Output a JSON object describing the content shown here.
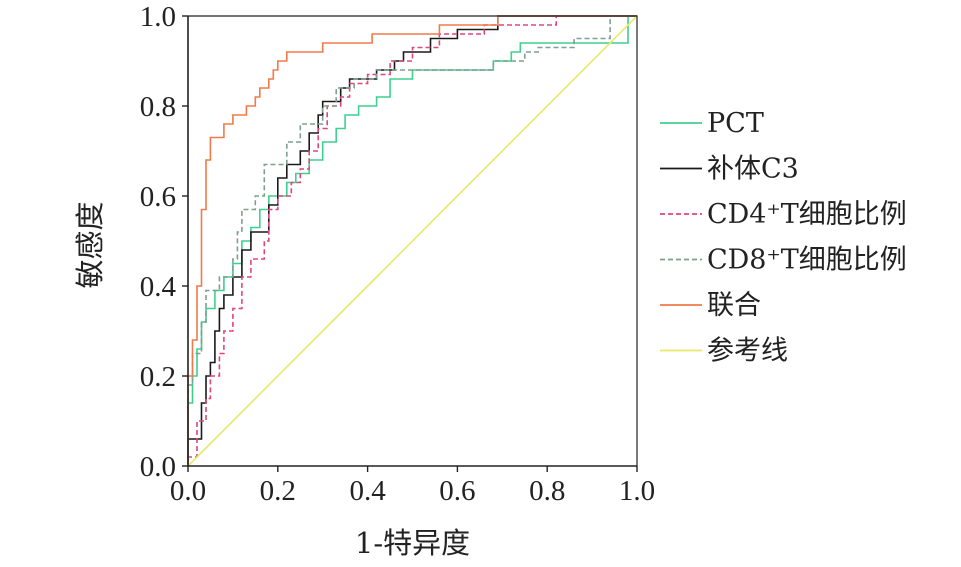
{
  "chart_data": {
    "type": "line",
    "xlabel": "1-特异度",
    "ylabel": "敏感度",
    "xlim": [
      0,
      1
    ],
    "ylim": [
      0,
      1
    ],
    "x_ticks": [
      "0.0",
      "0.2",
      "0.4",
      "0.6",
      "0.8",
      "1.0"
    ],
    "y_ticks": [
      "0.0",
      "0.2",
      "0.4",
      "0.6",
      "0.8",
      "1.0"
    ],
    "grid": false,
    "legend_position": "right",
    "series": [
      {
        "name": "PCT",
        "color": "#3fcf8f",
        "dash": "solid",
        "points": [
          [
            0,
            0
          ],
          [
            0,
            0.14
          ],
          [
            0.01,
            0.14
          ],
          [
            0.01,
            0.2
          ],
          [
            0.02,
            0.2
          ],
          [
            0.02,
            0.26
          ],
          [
            0.03,
            0.26
          ],
          [
            0.03,
            0.32
          ],
          [
            0.04,
            0.32
          ],
          [
            0.04,
            0.35
          ],
          [
            0.06,
            0.35
          ],
          [
            0.06,
            0.39
          ],
          [
            0.08,
            0.39
          ],
          [
            0.08,
            0.42
          ],
          [
            0.1,
            0.42
          ],
          [
            0.1,
            0.45
          ],
          [
            0.12,
            0.45
          ],
          [
            0.12,
            0.5
          ],
          [
            0.14,
            0.5
          ],
          [
            0.14,
            0.53
          ],
          [
            0.16,
            0.53
          ],
          [
            0.16,
            0.57
          ],
          [
            0.18,
            0.57
          ],
          [
            0.18,
            0.6
          ],
          [
            0.22,
            0.6
          ],
          [
            0.22,
            0.63
          ],
          [
            0.24,
            0.63
          ],
          [
            0.24,
            0.65
          ],
          [
            0.27,
            0.65
          ],
          [
            0.27,
            0.68
          ],
          [
            0.3,
            0.68
          ],
          [
            0.3,
            0.72
          ],
          [
            0.33,
            0.72
          ],
          [
            0.33,
            0.75
          ],
          [
            0.35,
            0.75
          ],
          [
            0.35,
            0.78
          ],
          [
            0.38,
            0.78
          ],
          [
            0.38,
            0.8
          ],
          [
            0.42,
            0.8
          ],
          [
            0.42,
            0.82
          ],
          [
            0.45,
            0.82
          ],
          [
            0.45,
            0.86
          ],
          [
            0.5,
            0.86
          ],
          [
            0.5,
            0.88
          ],
          [
            0.68,
            0.88
          ],
          [
            0.68,
            0.9
          ],
          [
            0.72,
            0.9
          ],
          [
            0.72,
            0.92
          ],
          [
            0.74,
            0.92
          ],
          [
            0.74,
            0.94
          ],
          [
            0.98,
            0.94
          ],
          [
            0.98,
            1
          ],
          [
            1,
            1
          ]
        ]
      },
      {
        "name": "补体C3",
        "color": "#1a1a1a",
        "dash": "solid",
        "points": [
          [
            0,
            0
          ],
          [
            0,
            0.06
          ],
          [
            0.03,
            0.06
          ],
          [
            0.03,
            0.14
          ],
          [
            0.04,
            0.14
          ],
          [
            0.04,
            0.2
          ],
          [
            0.05,
            0.2
          ],
          [
            0.05,
            0.23
          ],
          [
            0.06,
            0.23
          ],
          [
            0.06,
            0.3
          ],
          [
            0.07,
            0.3
          ],
          [
            0.07,
            0.35
          ],
          [
            0.08,
            0.35
          ],
          [
            0.08,
            0.38
          ],
          [
            0.1,
            0.38
          ],
          [
            0.1,
            0.42
          ],
          [
            0.12,
            0.42
          ],
          [
            0.12,
            0.48
          ],
          [
            0.14,
            0.48
          ],
          [
            0.14,
            0.52
          ],
          [
            0.18,
            0.52
          ],
          [
            0.18,
            0.58
          ],
          [
            0.2,
            0.58
          ],
          [
            0.2,
            0.64
          ],
          [
            0.22,
            0.64
          ],
          [
            0.22,
            0.67
          ],
          [
            0.25,
            0.67
          ],
          [
            0.25,
            0.7
          ],
          [
            0.27,
            0.7
          ],
          [
            0.27,
            0.74
          ],
          [
            0.29,
            0.74
          ],
          [
            0.29,
            0.78
          ],
          [
            0.3,
            0.78
          ],
          [
            0.3,
            0.81
          ],
          [
            0.34,
            0.81
          ],
          [
            0.34,
            0.84
          ],
          [
            0.36,
            0.84
          ],
          [
            0.36,
            0.86
          ],
          [
            0.42,
            0.86
          ],
          [
            0.42,
            0.88
          ],
          [
            0.46,
            0.88
          ],
          [
            0.46,
            0.9
          ],
          [
            0.48,
            0.9
          ],
          [
            0.48,
            0.92
          ],
          [
            0.54,
            0.92
          ],
          [
            0.54,
            0.95
          ],
          [
            0.6,
            0.95
          ],
          [
            0.6,
            0.97
          ],
          [
            0.69,
            0.97
          ],
          [
            0.69,
            1
          ],
          [
            1,
            1
          ]
        ]
      },
      {
        "name": "CD4⁺T细胞比例",
        "color": "#e0467a",
        "dash": "dashed",
        "points": [
          [
            0,
            0
          ],
          [
            0,
            0.02
          ],
          [
            0.02,
            0.02
          ],
          [
            0.02,
            0.1
          ],
          [
            0.04,
            0.1
          ],
          [
            0.04,
            0.15
          ],
          [
            0.05,
            0.15
          ],
          [
            0.05,
            0.2
          ],
          [
            0.07,
            0.2
          ],
          [
            0.07,
            0.25
          ],
          [
            0.08,
            0.25
          ],
          [
            0.08,
            0.3
          ],
          [
            0.1,
            0.3
          ],
          [
            0.1,
            0.35
          ],
          [
            0.12,
            0.35
          ],
          [
            0.12,
            0.42
          ],
          [
            0.14,
            0.42
          ],
          [
            0.14,
            0.46
          ],
          [
            0.17,
            0.46
          ],
          [
            0.17,
            0.5
          ],
          [
            0.18,
            0.5
          ],
          [
            0.18,
            0.57
          ],
          [
            0.2,
            0.57
          ],
          [
            0.2,
            0.6
          ],
          [
            0.23,
            0.6
          ],
          [
            0.23,
            0.63
          ],
          [
            0.25,
            0.63
          ],
          [
            0.25,
            0.66
          ],
          [
            0.27,
            0.66
          ],
          [
            0.27,
            0.7
          ],
          [
            0.29,
            0.7
          ],
          [
            0.29,
            0.75
          ],
          [
            0.31,
            0.75
          ],
          [
            0.31,
            0.8
          ],
          [
            0.34,
            0.8
          ],
          [
            0.34,
            0.82
          ],
          [
            0.36,
            0.82
          ],
          [
            0.36,
            0.85
          ],
          [
            0.4,
            0.85
          ],
          [
            0.4,
            0.87
          ],
          [
            0.45,
            0.87
          ],
          [
            0.45,
            0.9
          ],
          [
            0.5,
            0.9
          ],
          [
            0.5,
            0.93
          ],
          [
            0.56,
            0.93
          ],
          [
            0.56,
            0.96
          ],
          [
            0.66,
            0.96
          ],
          [
            0.66,
            0.98
          ],
          [
            0.82,
            0.98
          ],
          [
            0.82,
            1
          ],
          [
            1,
            1
          ]
        ]
      },
      {
        "name": "CD8⁺T细胞比例",
        "color": "#7f9f8f",
        "dash": "dashed",
        "points": [
          [
            0,
            0
          ],
          [
            0,
            0.18
          ],
          [
            0.01,
            0.18
          ],
          [
            0.01,
            0.25
          ],
          [
            0.03,
            0.25
          ],
          [
            0.03,
            0.32
          ],
          [
            0.04,
            0.32
          ],
          [
            0.04,
            0.39
          ],
          [
            0.07,
            0.39
          ],
          [
            0.07,
            0.42
          ],
          [
            0.1,
            0.42
          ],
          [
            0.1,
            0.46
          ],
          [
            0.11,
            0.46
          ],
          [
            0.11,
            0.52
          ],
          [
            0.12,
            0.52
          ],
          [
            0.12,
            0.57
          ],
          [
            0.15,
            0.57
          ],
          [
            0.15,
            0.6
          ],
          [
            0.17,
            0.6
          ],
          [
            0.17,
            0.67
          ],
          [
            0.22,
            0.67
          ],
          [
            0.22,
            0.72
          ],
          [
            0.25,
            0.72
          ],
          [
            0.25,
            0.76
          ],
          [
            0.3,
            0.76
          ],
          [
            0.3,
            0.8
          ],
          [
            0.33,
            0.8
          ],
          [
            0.33,
            0.84
          ],
          [
            0.37,
            0.84
          ],
          [
            0.37,
            0.86
          ],
          [
            0.42,
            0.86
          ],
          [
            0.42,
            0.88
          ],
          [
            0.68,
            0.88
          ],
          [
            0.68,
            0.9
          ],
          [
            0.75,
            0.9
          ],
          [
            0.75,
            0.92
          ],
          [
            0.78,
            0.92
          ],
          [
            0.78,
            0.93
          ],
          [
            0.86,
            0.93
          ],
          [
            0.86,
            0.95
          ],
          [
            0.94,
            0.95
          ],
          [
            0.94,
            1
          ],
          [
            1,
            1
          ]
        ]
      },
      {
        "name": "联合",
        "color": "#f07a4a",
        "dash": "solid",
        "points": [
          [
            0,
            0
          ],
          [
            0,
            0.2
          ],
          [
            0.01,
            0.2
          ],
          [
            0.01,
            0.28
          ],
          [
            0.02,
            0.28
          ],
          [
            0.02,
            0.4
          ],
          [
            0.03,
            0.4
          ],
          [
            0.03,
            0.57
          ],
          [
            0.04,
            0.57
          ],
          [
            0.04,
            0.68
          ],
          [
            0.05,
            0.68
          ],
          [
            0.05,
            0.73
          ],
          [
            0.08,
            0.73
          ],
          [
            0.08,
            0.76
          ],
          [
            0.1,
            0.76
          ],
          [
            0.1,
            0.78
          ],
          [
            0.13,
            0.78
          ],
          [
            0.13,
            0.8
          ],
          [
            0.15,
            0.8
          ],
          [
            0.15,
            0.82
          ],
          [
            0.16,
            0.82
          ],
          [
            0.16,
            0.84
          ],
          [
            0.18,
            0.84
          ],
          [
            0.18,
            0.86
          ],
          [
            0.19,
            0.86
          ],
          [
            0.19,
            0.88
          ],
          [
            0.2,
            0.88
          ],
          [
            0.2,
            0.9
          ],
          [
            0.22,
            0.9
          ],
          [
            0.22,
            0.92
          ],
          [
            0.3,
            0.92
          ],
          [
            0.3,
            0.94
          ],
          [
            0.41,
            0.94
          ],
          [
            0.41,
            0.96
          ],
          [
            0.56,
            0.96
          ],
          [
            0.56,
            0.98
          ],
          [
            0.69,
            0.98
          ],
          [
            0.69,
            1
          ],
          [
            1,
            1
          ]
        ]
      },
      {
        "name": "参考线",
        "color": "#e8e86a",
        "dash": "solid",
        "points": [
          [
            0,
            0
          ],
          [
            1,
            1
          ]
        ]
      }
    ]
  }
}
